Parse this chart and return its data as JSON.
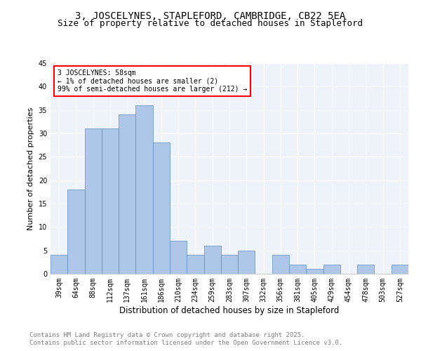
{
  "title1": "3, JOSCELYNES, STAPLEFORD, CAMBRIDGE, CB22 5EA",
  "title2": "Size of property relative to detached houses in Stapleford",
  "xlabel": "Distribution of detached houses by size in Stapleford",
  "ylabel": "Number of detached properties",
  "categories": [
    "39sqm",
    "64sqm",
    "88sqm",
    "112sqm",
    "137sqm",
    "161sqm",
    "186sqm",
    "210sqm",
    "234sqm",
    "259sqm",
    "283sqm",
    "307sqm",
    "332sqm",
    "356sqm",
    "381sqm",
    "405sqm",
    "429sqm",
    "454sqm",
    "478sqm",
    "503sqm",
    "527sqm"
  ],
  "values": [
    4,
    18,
    31,
    31,
    34,
    36,
    28,
    7,
    4,
    6,
    4,
    5,
    0,
    4,
    2,
    1,
    2,
    0,
    2,
    0,
    2
  ],
  "bar_color": "#aec6e8",
  "bar_edge_color": "#5a8fc2",
  "annotation_line1": "3 JOSCELYNES: 58sqm",
  "annotation_line2": "← 1% of detached houses are smaller (2)",
  "annotation_line3": "99% of semi-detached houses are larger (212) →",
  "ylim": [
    0,
    45
  ],
  "yticks": [
    0,
    5,
    10,
    15,
    20,
    25,
    30,
    35,
    40,
    45
  ],
  "footer1": "Contains HM Land Registry data © Crown copyright and database right 2025.",
  "footer2": "Contains public sector information licensed under the Open Government Licence v3.0.",
  "bg_color": "#eef2f9",
  "title1_fontsize": 10,
  "title2_fontsize": 9,
  "xlabel_fontsize": 8.5,
  "ylabel_fontsize": 8,
  "tick_fontsize": 7,
  "annotation_fontsize": 7,
  "footer_fontsize": 6.5
}
